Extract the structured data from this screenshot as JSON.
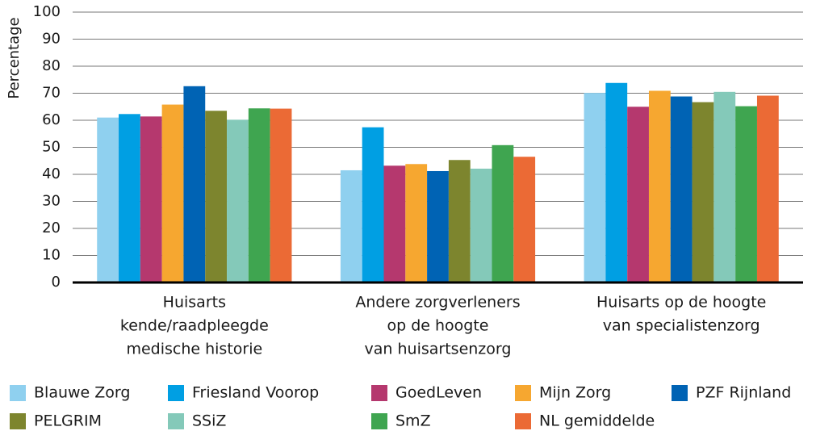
{
  "chart_data": {
    "type": "bar",
    "y_label": "Percentage",
    "categories": [
      [
        "Huisarts",
        "kende/raadpleegde",
        "medische historie"
      ],
      [
        "Andere zorgverleners",
        "op de hoogte",
        "van huisartsenzorg"
      ],
      [
        "Huisarts op de hoogte",
        "van specialistenzorg"
      ]
    ],
    "series": [
      {
        "name": "Blauwe Zorg",
        "color": "#8fd0ef",
        "values": [
          61,
          41.5,
          70.1
        ]
      },
      {
        "name": "Friesland Voorop",
        "color": "#009fe3",
        "values": [
          62.3,
          57.4,
          73.8
        ]
      },
      {
        "name": "GoedLeven",
        "color": "#b5386e",
        "values": [
          61.4,
          43.2,
          65
        ]
      },
      {
        "name": "Mijn Zorg",
        "color": "#f6a730",
        "values": [
          65.8,
          43.8,
          70.9
        ]
      },
      {
        "name": "PZF Rijnland",
        "color": "#0063b4",
        "values": [
          72.6,
          41.2,
          68.8
        ]
      },
      {
        "name": "PELGRIM",
        "color": "#7d852e",
        "values": [
          63.5,
          45.3,
          66.7
        ]
      },
      {
        "name": "SSiZ",
        "color": "#84c9b9",
        "values": [
          60.2,
          42.1,
          70.5
        ]
      },
      {
        "name": "SmZ",
        "color": "#3fa550",
        "values": [
          64.4,
          50.8,
          65.2
        ]
      },
      {
        "name": "NL gemiddelde",
        "color": "#eb6a35",
        "values": [
          64.3,
          46.5,
          69.1
        ]
      }
    ],
    "ylim": [
      0,
      100
    ],
    "yticks": [
      0,
      10,
      20,
      30,
      40,
      50,
      60,
      70,
      80,
      90,
      100
    ],
    "grid": true
  }
}
